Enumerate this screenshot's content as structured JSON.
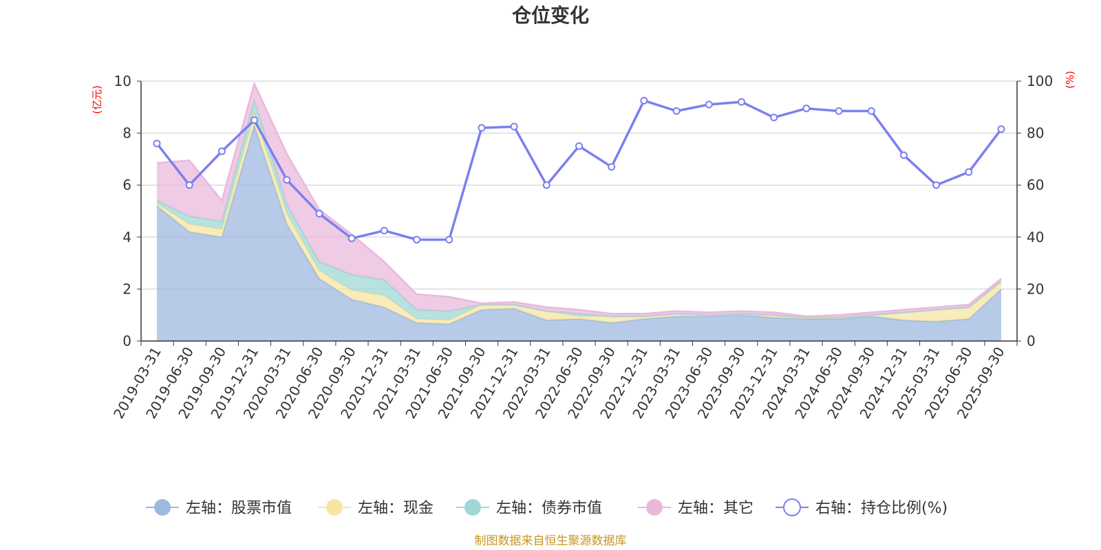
{
  "title": "仓位变化",
  "source_note": "制图数据来自恒生聚源数据库",
  "chart_data": {
    "type": "area",
    "title": "仓位变化",
    "y_left_unit": "(亿元)",
    "y_right_unit": "(%)",
    "y_left_lim": [
      0,
      10
    ],
    "y_right_lim": [
      0,
      100
    ],
    "y_left_ticks": [
      "0",
      "2",
      "4",
      "6",
      "8",
      "10"
    ],
    "y_right_ticks": [
      "0",
      "20",
      "40",
      "60",
      "80",
      "100"
    ],
    "grid": true,
    "legend_position": "bottom",
    "x": [
      "2019-03-31",
      "2019-06-30",
      "2019-09-30",
      "2019-12-31",
      "2020-03-31",
      "2020-06-30",
      "2020-09-30",
      "2020-12-31",
      "2021-03-31",
      "2021-06-30",
      "2021-09-30",
      "2021-12-31",
      "2022-03-31",
      "2022-06-30",
      "2022-09-30",
      "2022-12-31",
      "2023-03-31",
      "2023-06-30",
      "2023-09-30",
      "2023-12-31",
      "2024-03-31",
      "2024-06-30",
      "2024-09-30",
      "2024-12-31",
      "2025-03-31",
      "2025-06-30",
      "2025-09-30"
    ],
    "series": [
      {
        "name": "左轴：股票市值",
        "axis": "left",
        "type": "stacked-area",
        "color": "#9fb8e0",
        "values": [
          5.2,
          4.2,
          4.0,
          8.3,
          4.5,
          2.4,
          1.6,
          1.3,
          0.7,
          0.65,
          1.2,
          1.25,
          0.8,
          0.85,
          0.7,
          0.85,
          0.95,
          0.95,
          1.0,
          0.9,
          0.85,
          0.85,
          0.95,
          0.8,
          0.75,
          0.85,
          2.0
        ]
      },
      {
        "name": "左轴：现金",
        "axis": "left",
        "type": "stacked-area",
        "color": "#f7e6a3",
        "values": [
          0.1,
          0.3,
          0.3,
          0.45,
          0.4,
          0.3,
          0.35,
          0.45,
          0.15,
          0.15,
          0.2,
          0.15,
          0.35,
          0.1,
          0.25,
          0.1,
          0.1,
          0.05,
          0.05,
          0.1,
          0.05,
          0.05,
          0.05,
          0.3,
          0.45,
          0.45,
          0.3
        ]
      },
      {
        "name": "左轴：债券市值",
        "axis": "left",
        "type": "stacked-area",
        "color": "#9fd8d6",
        "values": [
          0.1,
          0.3,
          0.3,
          0.5,
          0.35,
          0.35,
          0.6,
          0.6,
          0.35,
          0.35,
          0,
          0,
          0,
          0.1,
          0,
          0,
          0,
          0,
          0,
          0,
          0,
          0,
          0,
          0,
          0,
          0,
          0
        ]
      },
      {
        "name": "左轴：其它",
        "axis": "left",
        "type": "stacked-area",
        "color": "#e9b9dc",
        "values": [
          1.45,
          2.15,
          0.8,
          0.65,
          1.95,
          2.0,
          1.55,
          0.7,
          0.6,
          0.55,
          0.05,
          0.1,
          0.15,
          0.15,
          0.1,
          0.1,
          0.1,
          0.1,
          0.1,
          0.1,
          0.05,
          0.1,
          0.1,
          0.1,
          0.1,
          0.1,
          0.1
        ]
      },
      {
        "name": "右轴：持仓比例(%)",
        "axis": "right",
        "type": "line",
        "color": "#7b7ff0",
        "values": [
          76,
          60,
          73,
          85,
          62,
          49,
          39.5,
          42.5,
          39,
          39,
          82,
          82.5,
          60,
          75,
          67,
          92.5,
          88.5,
          91,
          92,
          86,
          89.5,
          88.5,
          88.5,
          71.5,
          60,
          65,
          81.5
        ]
      }
    ]
  }
}
